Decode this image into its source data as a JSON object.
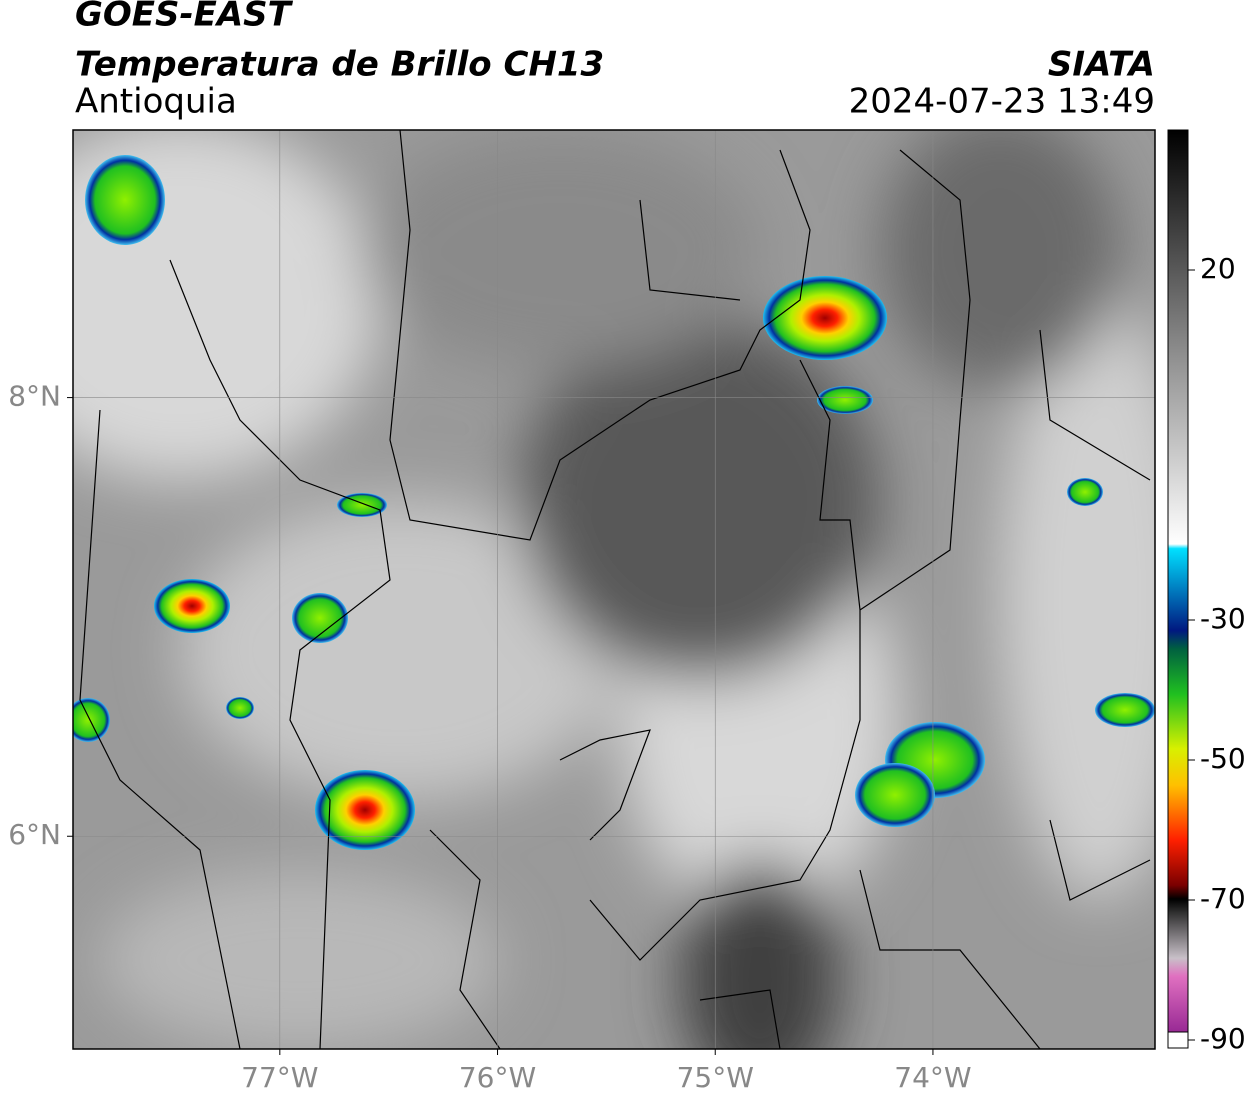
{
  "header": {
    "title": "GOES-EAST",
    "subtitle": "Temperatura de Brillo CH13",
    "region": "Antioquia",
    "source": "SIATA",
    "datetime": "2024-07-23 13:49"
  },
  "map": {
    "xlim": [
      -77.95,
      -72.98
    ],
    "ylim": [
      5.03,
      9.22
    ],
    "xticks": [
      {
        "value": -77,
        "label": "77°W"
      },
      {
        "value": -76,
        "label": "76°W"
      },
      {
        "value": -75,
        "label": "75°W"
      },
      {
        "value": -74,
        "label": "74°W"
      }
    ],
    "yticks": [
      {
        "value": 8,
        "label": "8°N"
      },
      {
        "value": 6,
        "label": "6°N"
      }
    ],
    "grid": true
  },
  "colorbar": {
    "lim": [
      -90,
      40
    ],
    "ticks": [
      20,
      -30,
      -50,
      -70,
      -90
    ]
  }
}
